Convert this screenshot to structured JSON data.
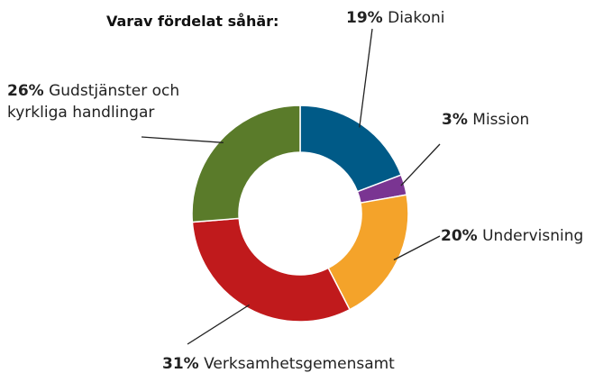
{
  "chart_data": {
    "type": "donut",
    "title": "Varav fördelat såhär:",
    "categories": [
      "Diakoni",
      "Mission",
      "Undervisning",
      "Verksamhetsgemensamt",
      "Gudstjänster och kyrkliga handlingar"
    ],
    "values": [
      19,
      3,
      20,
      31,
      26
    ],
    "value_labels": [
      "19%",
      "3%",
      "20%",
      "31%",
      "26%"
    ],
    "colors": [
      "#005a87",
      "#7a3592",
      "#f4a32a",
      "#c01a1c",
      "#5a7b2a"
    ]
  }
}
